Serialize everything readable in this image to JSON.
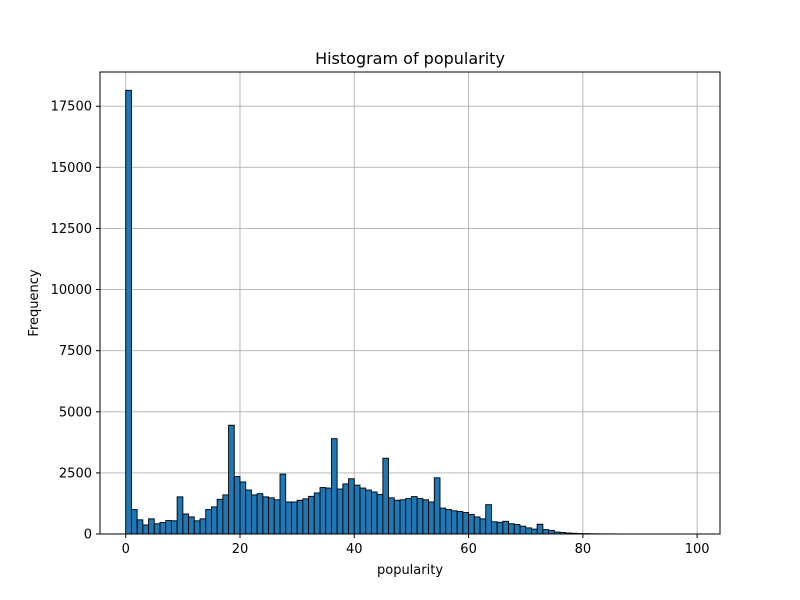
{
  "chart_data": {
    "type": "bar",
    "title": "Histogram of popularity",
    "xlabel": "popularity",
    "ylabel": "Frequency",
    "xlim": [
      -4.5,
      104
    ],
    "ylim": [
      0,
      18900
    ],
    "grid": true,
    "bar_color": "#1f77b4",
    "edge_color": "#000000",
    "bin_start": 0,
    "bin_width": 1,
    "values": [
      18150,
      1000,
      580,
      370,
      620,
      420,
      470,
      550,
      540,
      1520,
      820,
      700,
      540,
      620,
      1000,
      1110,
      1420,
      1600,
      4450,
      2350,
      2130,
      1800,
      1600,
      1650,
      1520,
      1480,
      1400,
      2450,
      1310,
      1310,
      1380,
      1440,
      1540,
      1680,
      1900,
      1880,
      3900,
      1840,
      2050,
      2260,
      2000,
      1880,
      1800,
      1720,
      1620,
      3100,
      1480,
      1380,
      1400,
      1450,
      1530,
      1450,
      1400,
      1310,
      2300,
      1060,
      1000,
      950,
      920,
      880,
      800,
      700,
      620,
      1200,
      500,
      480,
      520,
      420,
      390,
      320,
      250,
      200,
      400,
      180,
      150,
      80,
      60,
      40,
      30,
      20,
      15,
      10,
      8,
      5,
      5,
      4,
      3,
      2,
      2,
      1,
      1,
      1,
      1,
      1,
      1,
      1,
      1,
      1,
      1,
      1
    ],
    "x_ticks": [
      0,
      20,
      40,
      60,
      80,
      100
    ],
    "x_tick_labels": [
      "0",
      "20",
      "40",
      "60",
      "80",
      "100"
    ],
    "y_ticks": [
      0,
      2500,
      5000,
      7500,
      10000,
      12500,
      15000,
      17500
    ],
    "y_tick_labels": [
      "0",
      "2500",
      "5000",
      "7500",
      "10000",
      "12500",
      "15000",
      "17500"
    ]
  }
}
